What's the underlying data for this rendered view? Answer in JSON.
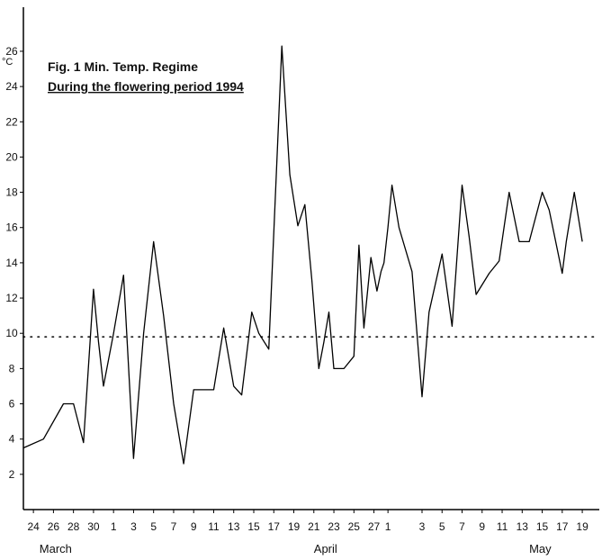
{
  "figure": {
    "title": "Fig. 1   Min. Temp. Regime",
    "subtitle": "During the flowering period 1994",
    "unit": "°C"
  },
  "chart_data": {
    "type": "line",
    "title": "Fig. 1   Min. Temp. Regime",
    "subtitle": "During the flowering period 1994",
    "ylabel": "°C",
    "ylim": [
      0,
      28.5
    ],
    "yticks": [
      2,
      4,
      6,
      8,
      10,
      12,
      14,
      16,
      18,
      20,
      22,
      24,
      26
    ],
    "xlim": [
      0,
      57.5
    ],
    "xtick_labels": [
      "24",
      "26",
      "28",
      "30",
      "1",
      "3",
      "5",
      "7",
      "9",
      "11",
      "13",
      "15",
      "17",
      "19",
      "21",
      "23",
      "25",
      "27",
      "1",
      "3",
      "5",
      "7",
      "9",
      "11",
      "13",
      "15",
      "17",
      "19"
    ],
    "xtick_positions": [
      1,
      3,
      5,
      7,
      9,
      11,
      13,
      15,
      17,
      19,
      21,
      23,
      25,
      27,
      29,
      31,
      33,
      35,
      36.4,
      39.8,
      41.8,
      43.8,
      45.8,
      47.8,
      49.8,
      51.8,
      53.8,
      55.8
    ],
    "months": [
      {
        "label": "March",
        "x": 1.6
      },
      {
        "label": "April",
        "x": 29
      },
      {
        "label": "May",
        "x": 50.5
      }
    ],
    "reference_line": {
      "y": 9.8,
      "style": "dotted"
    },
    "grid": false,
    "legend": "none",
    "series": [
      {
        "x": [
          0,
          2,
          4,
          5,
          6,
          7,
          7.5,
          8,
          9,
          10,
          11,
          12,
          13,
          14,
          15,
          16,
          17,
          18,
          19,
          20,
          21,
          21.8,
          22.8,
          23.5,
          24.5,
          25.8,
          26.6,
          27.4,
          28.1,
          28.8,
          29.5,
          30,
          30.5,
          31,
          32,
          33,
          33.5,
          34,
          34.7,
          35.3,
          35.7,
          36,
          36.4,
          36.8,
          37.5,
          38.8,
          39.8,
          40.5,
          41.8,
          42.8,
          43.8,
          44.5,
          45.2,
          46.5,
          47.5,
          48.5,
          49.5,
          50.5,
          51.8,
          52.5,
          53.8,
          54.2,
          55,
          55.8
        ],
        "y": [
          3.5,
          4,
          6,
          6,
          3.8,
          12.5,
          9.5,
          7,
          10,
          13.3,
          2.9,
          10,
          15.2,
          11,
          6,
          2.6,
          6.8,
          6.8,
          6.8,
          10.3,
          7,
          6.5,
          11.2,
          10,
          9.1,
          26.3,
          19,
          16.1,
          17.3,
          13,
          8,
          9.5,
          11.2,
          8,
          8,
          8.7,
          15,
          10.3,
          14.3,
          12.4,
          13.5,
          14,
          16,
          18.4,
          16,
          13.5,
          6.4,
          11.2,
          14.5,
          10.4,
          18.4,
          15.5,
          12.2,
          13.4,
          14.1,
          18,
          15.2,
          15.2,
          18,
          17,
          13.4,
          15.2,
          18,
          15.2
        ]
      }
    ]
  }
}
